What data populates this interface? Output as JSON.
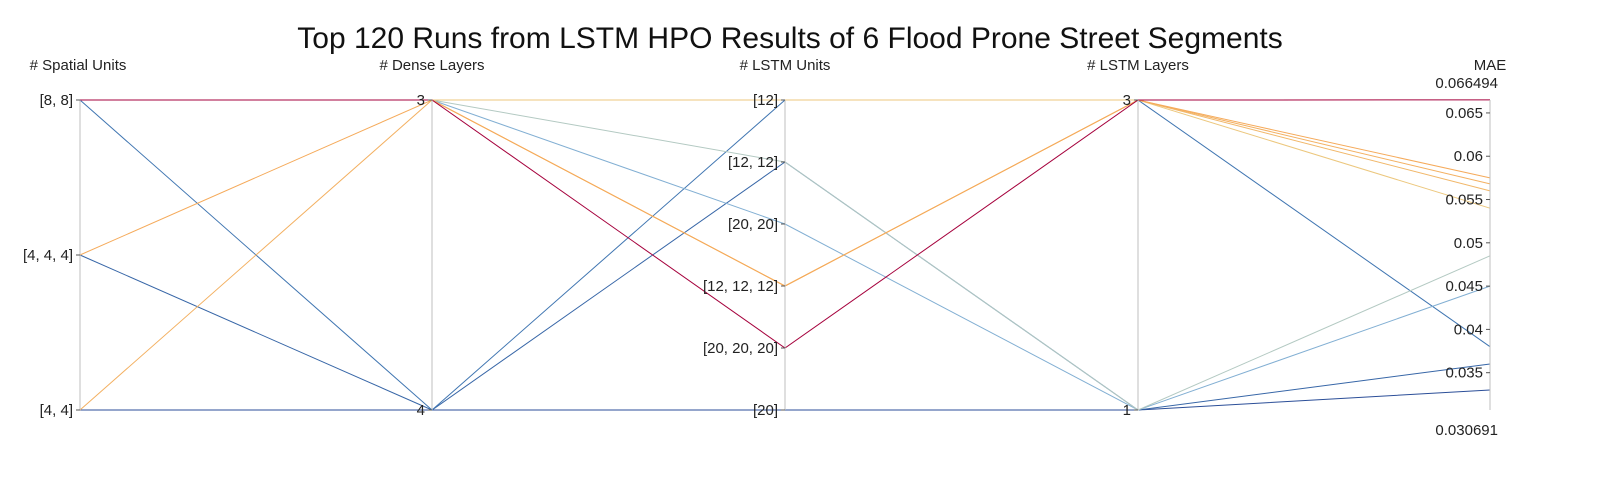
{
  "chart_data": {
    "type": "parallel_coordinates",
    "title": "Top 120 Runs from LSTM HPO Results of 6 Flood Prone Street Segments",
    "dimensions": [
      {
        "label": "# Spatial Units",
        "ticks": [
          "[8, 8]",
          "[4, 4, 4]",
          "[4, 4]"
        ]
      },
      {
        "label": "# Dense Layers",
        "ticks": [
          "3",
          "4"
        ]
      },
      {
        "label": "# LSTM Units",
        "ticks": [
          "[12]",
          "[12, 12]",
          "[20, 20]",
          "[12, 12, 12]",
          "[20, 20, 20]",
          "[20]"
        ]
      },
      {
        "label": "# LSTM Layers",
        "ticks": [
          "3",
          "1"
        ]
      },
      {
        "label": "MAE",
        "range": [
          0.030691,
          0.066494
        ],
        "range_labels": [
          "0.066494",
          "0.030691"
        ],
        "ticks": [
          "0.065",
          "0.06",
          "0.055",
          "0.05",
          "0.045",
          "0.04",
          "0.035"
        ]
      }
    ],
    "colorscale": "blue (low MAE) to red (high MAE)",
    "runs": [
      {
        "spatial_units": "[8, 8]",
        "dense_layers": "3",
        "lstm_units": "[20, 20, 20]",
        "lstm_layers": "3",
        "mae": 0.0665
      },
      {
        "spatial_units": "[4, 4, 4]",
        "dense_layers": "3",
        "lstm_units": "[12, 12, 12]",
        "lstm_layers": "3",
        "mae": 0.0575
      },
      {
        "spatial_units": "[4, 4]",
        "dense_layers": "3",
        "lstm_units": "[12, 12, 12]",
        "lstm_layers": "3",
        "mae": 0.0568
      },
      {
        "spatial_units": "[8, 8]",
        "dense_layers": "3",
        "lstm_units": "[12, 12, 12]",
        "lstm_layers": "3",
        "mae": 0.056
      },
      {
        "spatial_units": "[8, 8]",
        "dense_layers": "3",
        "lstm_units": "[12, 12]",
        "lstm_layers": "1",
        "mae": 0.0485
      },
      {
        "spatial_units": "[8, 8]",
        "dense_layers": "3",
        "lstm_units": "[20, 20]",
        "lstm_layers": "1",
        "mae": 0.045
      },
      {
        "spatial_units": "[8, 8]",
        "dense_layers": "3",
        "lstm_units": "[12]",
        "lstm_layers": "3",
        "mae": 0.054
      },
      {
        "spatial_units": "[8, 8]",
        "dense_layers": "4",
        "lstm_units": "[12]",
        "lstm_layers": "3",
        "mae": 0.038
      },
      {
        "spatial_units": "[4, 4, 4]",
        "dense_layers": "4",
        "lstm_units": "[12, 12]",
        "lstm_layers": "1",
        "mae": 0.036
      },
      {
        "spatial_units": "[4, 4]",
        "dense_layers": "4",
        "lstm_units": "[20]",
        "lstm_layers": "1",
        "mae": 0.033
      }
    ]
  }
}
